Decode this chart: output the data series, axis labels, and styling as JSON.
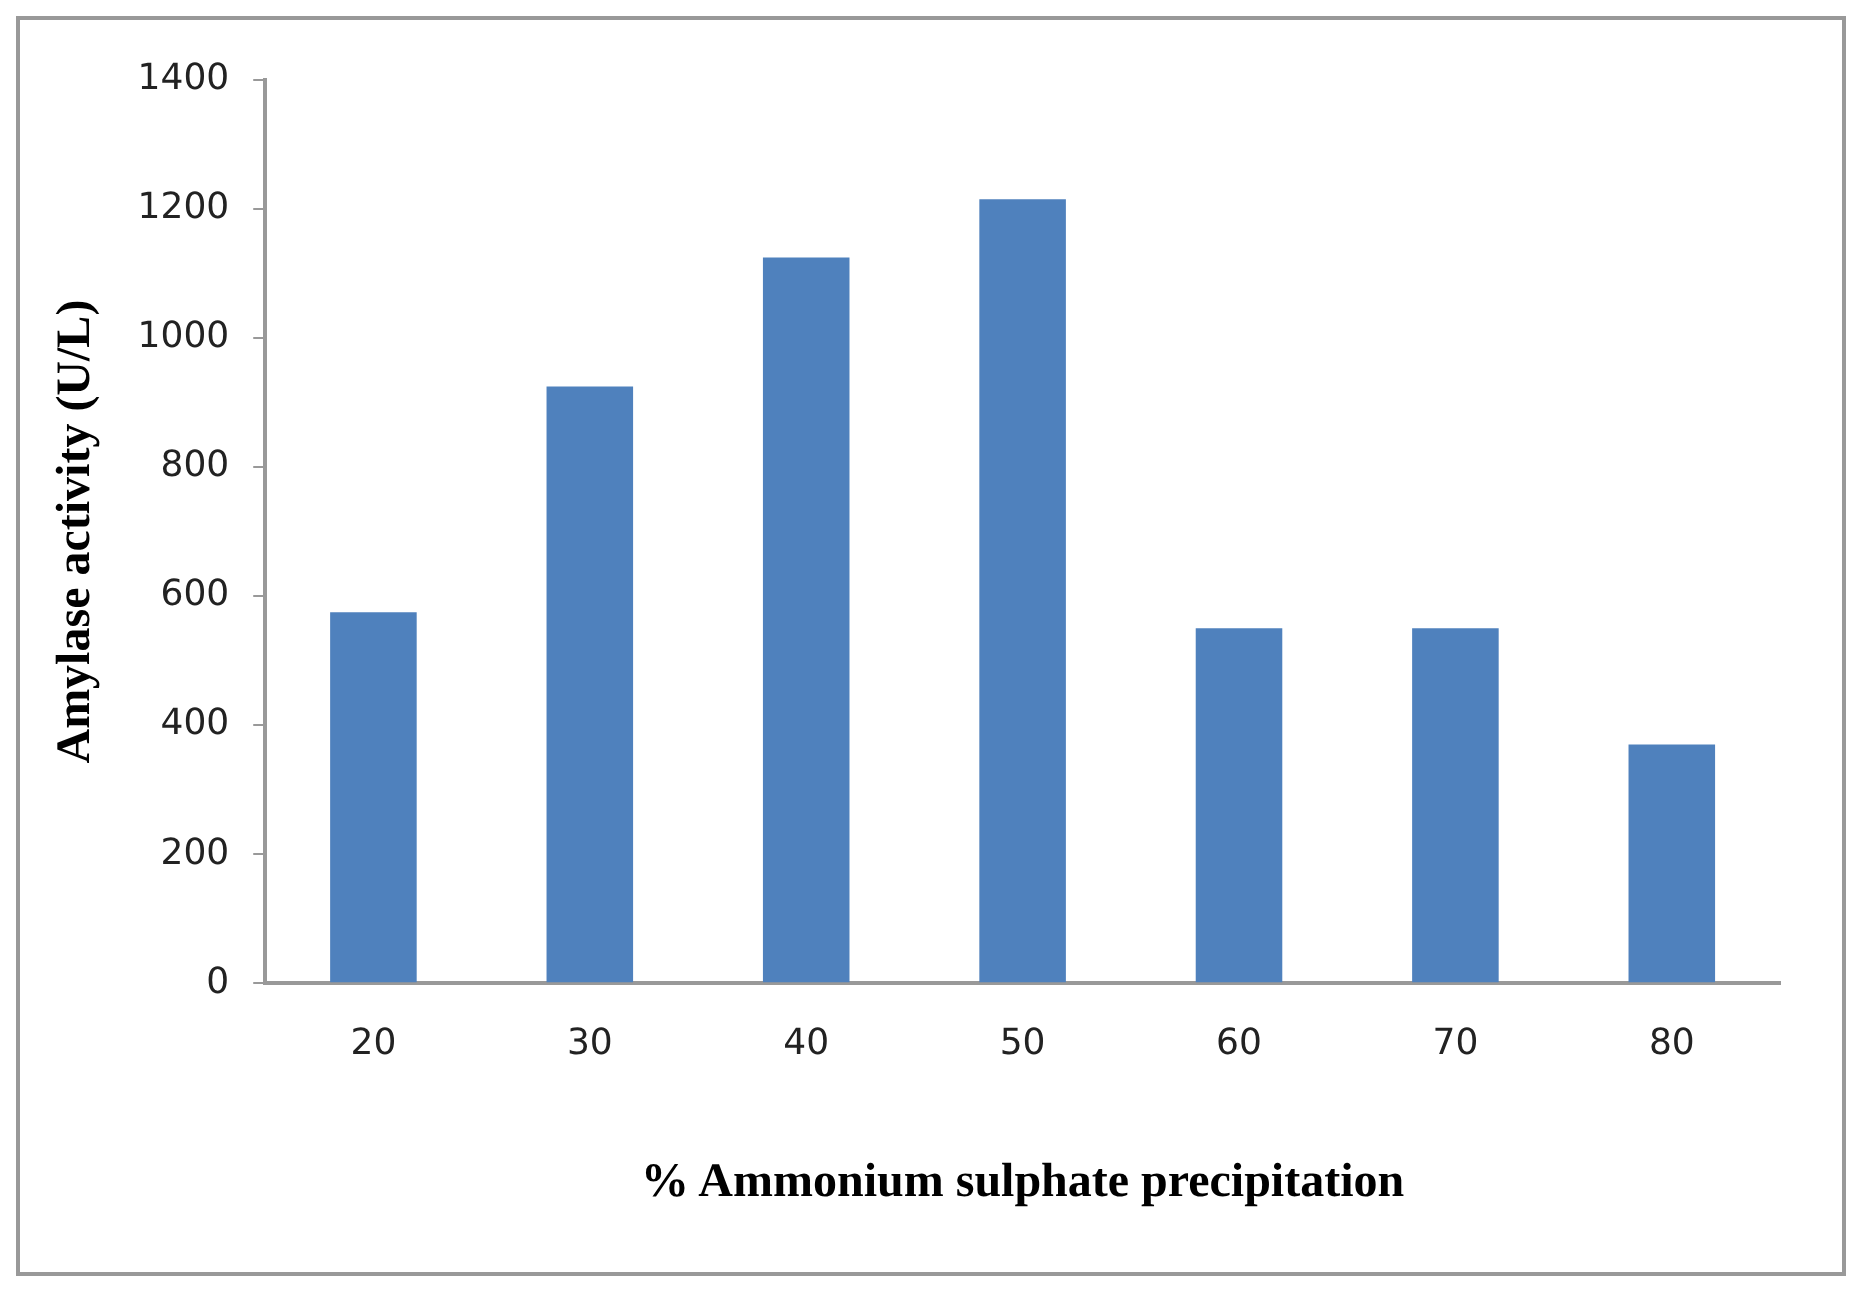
{
  "chart_data": {
    "type": "bar",
    "xlabel": "% Ammonium sulphate precipitation",
    "ylabel": "Amylase activity (U/L)",
    "categories": [
      "20",
      "30",
      "40",
      "50",
      "60",
      "70",
      "80"
    ],
    "values": [
      575,
      925,
      1125,
      1215,
      550,
      550,
      370
    ],
    "color": "#4f81bd",
    "ylim": [
      0,
      1400
    ],
    "yticks": [
      0,
      200,
      400,
      600,
      800,
      1000,
      1200,
      1400
    ],
    "grid": false,
    "legend": false
  }
}
